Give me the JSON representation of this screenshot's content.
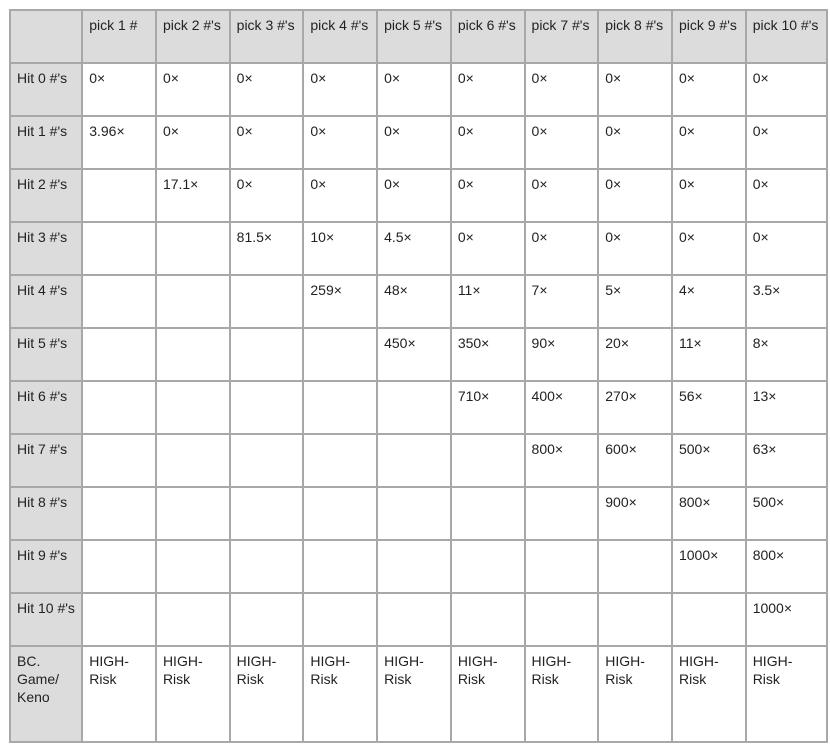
{
  "table": {
    "columns": [
      "pick 1 #",
      "pick 2 #'s",
      "pick 3 #'s",
      "pick 4 #'s",
      "pick 5 #'s",
      "pick 6 #'s",
      "pick 7 #'s",
      "pick 8 #'s",
      "pick 9 #'s",
      "pick 10 #'s"
    ],
    "rows": [
      {
        "label": "Hit 0 #'s",
        "cells": [
          "0×",
          "0×",
          "0×",
          "0×",
          "0×",
          "0×",
          "0×",
          "0×",
          "0×",
          "0×"
        ]
      },
      {
        "label": "Hit 1 #'s",
        "cells": [
          "3.96×",
          "0×",
          "0×",
          "0×",
          "0×",
          "0×",
          "0×",
          "0×",
          "0×",
          "0×"
        ]
      },
      {
        "label": "Hit 2 #'s",
        "cells": [
          "",
          "17.1×",
          "0×",
          "0×",
          "0×",
          "0×",
          "0×",
          "0×",
          "0×",
          "0×"
        ]
      },
      {
        "label": "Hit 3 #'s",
        "cells": [
          "",
          "",
          "81.5×",
          "10×",
          "4.5×",
          "0×",
          "0×",
          "0×",
          "0×",
          "0×"
        ]
      },
      {
        "label": "Hit 4 #'s",
        "cells": [
          "",
          "",
          "",
          "259×",
          "48×",
          "11×",
          "7×",
          "5×",
          "4×",
          "3.5×"
        ]
      },
      {
        "label": "Hit 5 #'s",
        "cells": [
          "",
          "",
          "",
          "",
          "450×",
          "350×",
          "90×",
          "20×",
          "11×",
          "8×"
        ]
      },
      {
        "label": "Hit 6 #'s",
        "cells": [
          "",
          "",
          "",
          "",
          "",
          "710×",
          "400×",
          "270×",
          "56×",
          "13×"
        ]
      },
      {
        "label": "Hit 7 #'s",
        "cells": [
          "",
          "",
          "",
          "",
          "",
          "",
          "800×",
          "600×",
          "500×",
          "63×"
        ]
      },
      {
        "label": "Hit 8 #'s",
        "cells": [
          "",
          "",
          "",
          "",
          "",
          "",
          "",
          "900×",
          "800×",
          "500×"
        ]
      },
      {
        "label": "Hit 9 #'s",
        "cells": [
          "",
          "",
          "",
          "",
          "",
          "",
          "",
          "",
          "1000×",
          "800×"
        ]
      },
      {
        "label": "Hit 10 #'s",
        "cells": [
          "",
          "",
          "",
          "",
          "",
          "",
          "",
          "",
          "",
          "1000×"
        ]
      },
      {
        "label": "BC. Game/ Keno",
        "cells": [
          "HIGH- Risk",
          "HIGH- Risk",
          "HIGH- Risk",
          "HIGH- Risk",
          "HIGH- Risk",
          "HIGH- Risk",
          "HIGH- Risk",
          "HIGH- Risk",
          "HIGH- Risk",
          "HIGH- Risk"
        ]
      }
    ]
  }
}
